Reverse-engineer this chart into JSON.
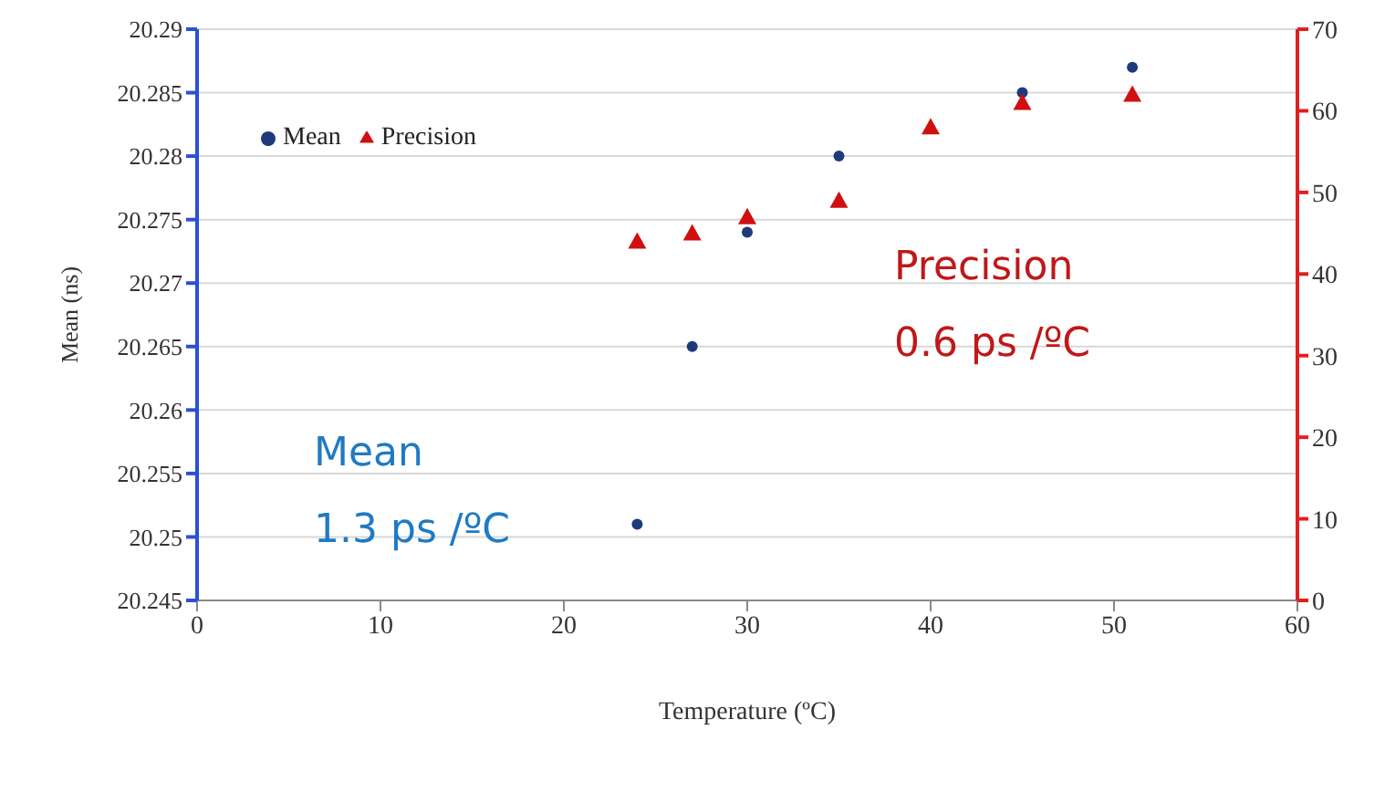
{
  "chart_data": {
    "type": "scatter",
    "xlabel": "Temperature (ºC)",
    "ylabel": "Mean (ns)",
    "xlim": [
      0,
      60
    ],
    "xticks": [
      0,
      10,
      20,
      30,
      40,
      50,
      60
    ],
    "ylim": [
      20.245,
      20.29
    ],
    "yticks": [
      20.245,
      20.25,
      20.255,
      20.26,
      20.265,
      20.27,
      20.275,
      20.28,
      20.285,
      20.29
    ],
    "y2lim": [
      0,
      70
    ],
    "y2ticks": [
      0,
      10,
      20,
      30,
      40,
      50,
      60,
      70
    ],
    "grid": "y",
    "legend": "top left",
    "series": [
      {
        "name": "Mean",
        "color": "#1f3a7a",
        "marker": "circle",
        "x": [
          24,
          27,
          30,
          35,
          45,
          51
        ],
        "values": [
          20.251,
          20.265,
          20.274,
          20.28,
          20.285,
          20.287
        ]
      },
      {
        "name": "Precision",
        "color": "#d01010",
        "marker": "triangle",
        "axis": "y2",
        "x": [
          24,
          27,
          30,
          35,
          40,
          45,
          51
        ],
        "values": [
          44,
          45,
          47,
          49,
          58,
          61,
          62
        ]
      }
    ],
    "annotations": [
      "Mean\n1.3 ps /ºC",
      "Precision\n0.6 ps /ºC"
    ]
  }
}
